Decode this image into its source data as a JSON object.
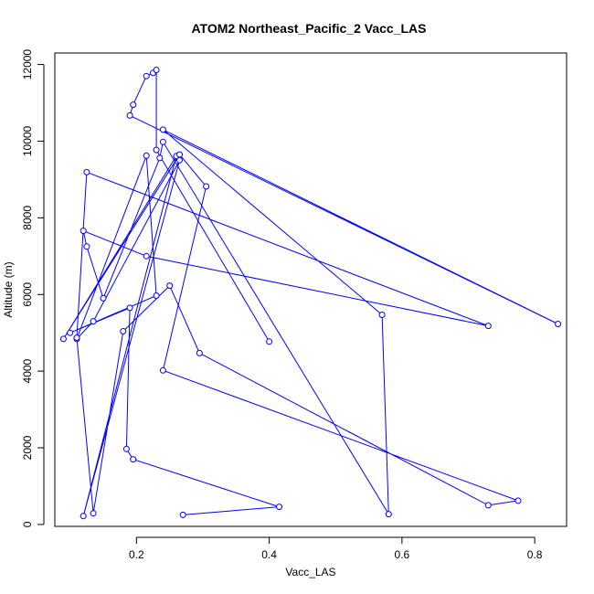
{
  "chart_data": {
    "type": "line",
    "title": "ATOM2 Northeast_Pacific_2 Vacc_LAS",
    "xlabel": "Vacc_LAS",
    "ylabel": "Altitude (m)",
    "xlim": [
      0.077,
      0.848
    ],
    "ylim": [
      -50,
      12300
    ],
    "x_ticks": [
      0.2,
      0.4,
      0.6,
      0.8
    ],
    "x_tick_labels": [
      "0.2",
      "0.4",
      "0.6",
      "0.8"
    ],
    "y_ticks": [
      0,
      2000,
      4000,
      6000,
      8000,
      10000,
      12000
    ],
    "y_tick_labels": [
      "0",
      "2000",
      "4000",
      "6000",
      "8000",
      "10000",
      "12000"
    ],
    "grid": false,
    "series_color": "#0000ff",
    "series": [
      {
        "points": [
          [
            0.27,
            250
          ],
          [
            0.415,
            460
          ],
          [
            0.195,
            1700
          ],
          [
            0.185,
            1970
          ],
          [
            0.19,
            5650
          ],
          [
            0.1,
            5000
          ],
          [
            0.23,
            5970
          ],
          [
            0.215,
            9620
          ],
          [
            0.11,
            4840
          ],
          [
            0.135,
            5300
          ],
          [
            0.265,
            9500
          ],
          [
            0.12,
            220
          ],
          [
            0.26,
            9610
          ],
          [
            0.09,
            4840
          ],
          [
            0.265,
            9650
          ],
          [
            0.305,
            8820
          ],
          [
            0.24,
            4020
          ],
          [
            0.775,
            620
          ],
          [
            0.73,
            500
          ],
          [
            0.295,
            4470
          ],
          [
            0.25,
            6230
          ],
          [
            0.18,
            5040
          ],
          [
            0.135,
            290
          ],
          [
            0.11,
            4870
          ],
          [
            0.125,
            9190
          ],
          [
            0.73,
            5180
          ],
          [
            0.215,
            7000
          ],
          [
            0.12,
            7660
          ],
          [
            0.125,
            7250
          ],
          [
            0.15,
            5900
          ],
          [
            0.235,
            9560
          ],
          [
            0.24,
            9980
          ],
          [
            0.58,
            270
          ],
          [
            0.57,
            5470
          ],
          [
            0.24,
            10300
          ],
          [
            0.835,
            5230
          ],
          [
            0.19,
            10670
          ],
          [
            0.195,
            10950
          ],
          [
            0.215,
            11700
          ],
          [
            0.225,
            11780
          ],
          [
            0.23,
            11860
          ],
          [
            0.23,
            9770
          ],
          [
            0.4,
            4770
          ]
        ]
      }
    ]
  }
}
